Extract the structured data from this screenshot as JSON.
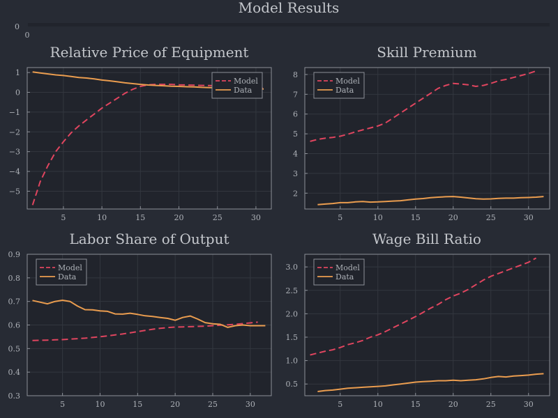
{
  "figure": {
    "title": "Model Results",
    "top_strip": {
      "ytick": "0",
      "xtick": "0"
    }
  },
  "colors": {
    "background": "#272b34",
    "plot_bg": "#21242c",
    "frame": "#8d9199",
    "grid": "#33373f",
    "model": "#e0455f",
    "data": "#eb9d4f"
  },
  "chart_data": [
    {
      "type": "line",
      "title": "Relative Price of Equipment",
      "xlim": [
        0.3,
        32
      ],
      "ylim": [
        -5.9,
        1.25
      ],
      "xticks": [
        5,
        10,
        15,
        20,
        25,
        30
      ],
      "yticks": [
        1,
        0,
        -1,
        -2,
        -3,
        -4,
        -5
      ],
      "legend": "top-right",
      "series": [
        {
          "name": "Model",
          "style": "dashed",
          "x": [
            1,
            2,
            3,
            4,
            5,
            6,
            7,
            8,
            9,
            10,
            11,
            12,
            13,
            14,
            15,
            16,
            17,
            18,
            19,
            20,
            21,
            22,
            23,
            24,
            25,
            26,
            27,
            28,
            29,
            30,
            31
          ],
          "y": [
            -5.7,
            -4.5,
            -3.7,
            -3.0,
            -2.5,
            -2.05,
            -1.7,
            -1.4,
            -1.1,
            -0.8,
            -0.55,
            -0.3,
            -0.05,
            0.15,
            0.3,
            0.38,
            0.4,
            0.4,
            0.4,
            0.38,
            0.37,
            0.36,
            0.35,
            0.34,
            0.33,
            0.32,
            0.31,
            0.3,
            0.28,
            0.25,
            0.2
          ]
        },
        {
          "name": "Data",
          "style": "solid",
          "x": [
            1,
            2,
            3,
            4,
            5,
            6,
            7,
            8,
            9,
            10,
            11,
            12,
            13,
            14,
            15,
            16,
            17,
            18,
            19,
            20,
            21,
            22,
            23,
            24,
            25,
            26,
            27,
            28,
            29,
            30,
            31
          ],
          "y": [
            1.03,
            0.98,
            0.93,
            0.88,
            0.85,
            0.8,
            0.75,
            0.72,
            0.68,
            0.62,
            0.58,
            0.53,
            0.48,
            0.44,
            0.4,
            0.37,
            0.35,
            0.33,
            0.31,
            0.3,
            0.28,
            0.27,
            0.25,
            0.24,
            0.23,
            0.22,
            0.21,
            0.2,
            0.19,
            0.18,
            0.17
          ]
        }
      ]
    },
    {
      "type": "line",
      "title": "Skill Premium",
      "xlim": [
        0.3,
        32.8
      ],
      "ylim": [
        1.2,
        8.35
      ],
      "xticks": [
        5,
        10,
        15,
        20,
        25,
        30
      ],
      "yticks": [
        8,
        7,
        6,
        5,
        4,
        3,
        2
      ],
      "legend": "top-left",
      "series": [
        {
          "name": "Model",
          "style": "dashed",
          "x": [
            1,
            2,
            3,
            4,
            5,
            6,
            7,
            8,
            9,
            10,
            11,
            12,
            13,
            14,
            15,
            16,
            17,
            18,
            19,
            20,
            21,
            22,
            23,
            24,
            25,
            26,
            27,
            28,
            29,
            30,
            31
          ],
          "y": [
            4.62,
            4.72,
            4.78,
            4.82,
            4.88,
            4.98,
            5.1,
            5.2,
            5.3,
            5.4,
            5.55,
            5.8,
            6.05,
            6.3,
            6.55,
            6.8,
            7.05,
            7.3,
            7.45,
            7.55,
            7.52,
            7.48,
            7.4,
            7.45,
            7.55,
            7.68,
            7.75,
            7.85,
            7.95,
            8.05,
            8.18
          ]
        },
        {
          "name": "Data",
          "style": "solid",
          "x": [
            2,
            3,
            4,
            5,
            6,
            7,
            8,
            9,
            10,
            11,
            12,
            13,
            14,
            15,
            16,
            17,
            18,
            19,
            20,
            21,
            22,
            23,
            24,
            25,
            26,
            27,
            28,
            29,
            30,
            31,
            32
          ],
          "y": [
            1.42,
            1.45,
            1.48,
            1.52,
            1.52,
            1.56,
            1.58,
            1.55,
            1.56,
            1.58,
            1.6,
            1.62,
            1.66,
            1.7,
            1.73,
            1.77,
            1.8,
            1.82,
            1.83,
            1.8,
            1.76,
            1.72,
            1.7,
            1.71,
            1.74,
            1.75,
            1.75,
            1.77,
            1.78,
            1.8,
            1.83
          ]
        }
      ]
    },
    {
      "type": "line",
      "title": "Labor Share of Output",
      "xlim": [
        0.3,
        32.8
      ],
      "ylim": [
        0.3,
        0.9
      ],
      "xticks": [
        5,
        10,
        15,
        20,
        25,
        30
      ],
      "yticks": [
        0.9,
        0.8,
        0.7,
        0.6,
        0.5,
        0.4,
        0.3
      ],
      "legend": "top-left",
      "series": [
        {
          "name": "Model",
          "style": "dashed",
          "x": [
            1,
            2,
            3,
            4,
            5,
            6,
            7,
            8,
            9,
            10,
            11,
            12,
            13,
            14,
            15,
            16,
            17,
            18,
            19,
            20,
            21,
            22,
            23,
            24,
            25,
            26,
            27,
            28,
            29,
            30,
            31
          ],
          "y": [
            0.534,
            0.535,
            0.536,
            0.537,
            0.538,
            0.54,
            0.542,
            0.544,
            0.547,
            0.55,
            0.554,
            0.558,
            0.562,
            0.567,
            0.572,
            0.577,
            0.582,
            0.586,
            0.589,
            0.591,
            0.592,
            0.593,
            0.594,
            0.595,
            0.597,
            0.599,
            0.601,
            0.603,
            0.606,
            0.609,
            0.612
          ]
        },
        {
          "name": "Data",
          "style": "solid",
          "x": [
            1,
            2,
            3,
            4,
            5,
            6,
            7,
            8,
            9,
            10,
            11,
            12,
            13,
            14,
            15,
            16,
            17,
            18,
            19,
            20,
            21,
            22,
            23,
            24,
            25,
            26,
            27,
            28,
            29,
            30,
            31,
            32
          ],
          "y": [
            0.704,
            0.697,
            0.69,
            0.7,
            0.705,
            0.7,
            0.68,
            0.665,
            0.664,
            0.66,
            0.658,
            0.647,
            0.646,
            0.65,
            0.645,
            0.639,
            0.636,
            0.632,
            0.628,
            0.62,
            0.632,
            0.638,
            0.625,
            0.61,
            0.605,
            0.603,
            0.59,
            0.597,
            0.6,
            0.597,
            0.597,
            0.597
          ]
        }
      ]
    },
    {
      "type": "line",
      "title": "Wage Bill Ratio",
      "xlim": [
        0.3,
        32.8
      ],
      "ylim": [
        0.25,
        3.27
      ],
      "xticks": [
        5,
        10,
        15,
        20,
        25,
        30
      ],
      "yticks": [
        3.0,
        2.5,
        2.0,
        1.5,
        1.0,
        0.5
      ],
      "legend": "top-left",
      "series": [
        {
          "name": "Model",
          "style": "dashed",
          "x": [
            1,
            2,
            3,
            4,
            5,
            6,
            7,
            8,
            9,
            10,
            11,
            12,
            13,
            14,
            15,
            16,
            17,
            18,
            19,
            20,
            21,
            22,
            23,
            24,
            25,
            26,
            27,
            28,
            29,
            30,
            31
          ],
          "y": [
            1.12,
            1.16,
            1.2,
            1.23,
            1.28,
            1.34,
            1.38,
            1.43,
            1.5,
            1.55,
            1.62,
            1.7,
            1.78,
            1.86,
            1.94,
            2.03,
            2.12,
            2.2,
            2.3,
            2.38,
            2.44,
            2.52,
            2.62,
            2.72,
            2.8,
            2.86,
            2.92,
            2.98,
            3.04,
            3.1,
            3.19
          ]
        },
        {
          "name": "Data",
          "style": "solid",
          "x": [
            2,
            3,
            4,
            5,
            6,
            7,
            8,
            9,
            10,
            11,
            12,
            13,
            14,
            15,
            16,
            17,
            18,
            19,
            20,
            21,
            22,
            23,
            24,
            25,
            26,
            27,
            28,
            29,
            30,
            31,
            32
          ],
          "y": [
            0.34,
            0.36,
            0.37,
            0.39,
            0.41,
            0.42,
            0.43,
            0.44,
            0.45,
            0.46,
            0.48,
            0.5,
            0.52,
            0.54,
            0.55,
            0.56,
            0.57,
            0.57,
            0.58,
            0.57,
            0.58,
            0.59,
            0.61,
            0.64,
            0.66,
            0.65,
            0.67,
            0.68,
            0.69,
            0.71,
            0.72
          ]
        }
      ]
    }
  ]
}
